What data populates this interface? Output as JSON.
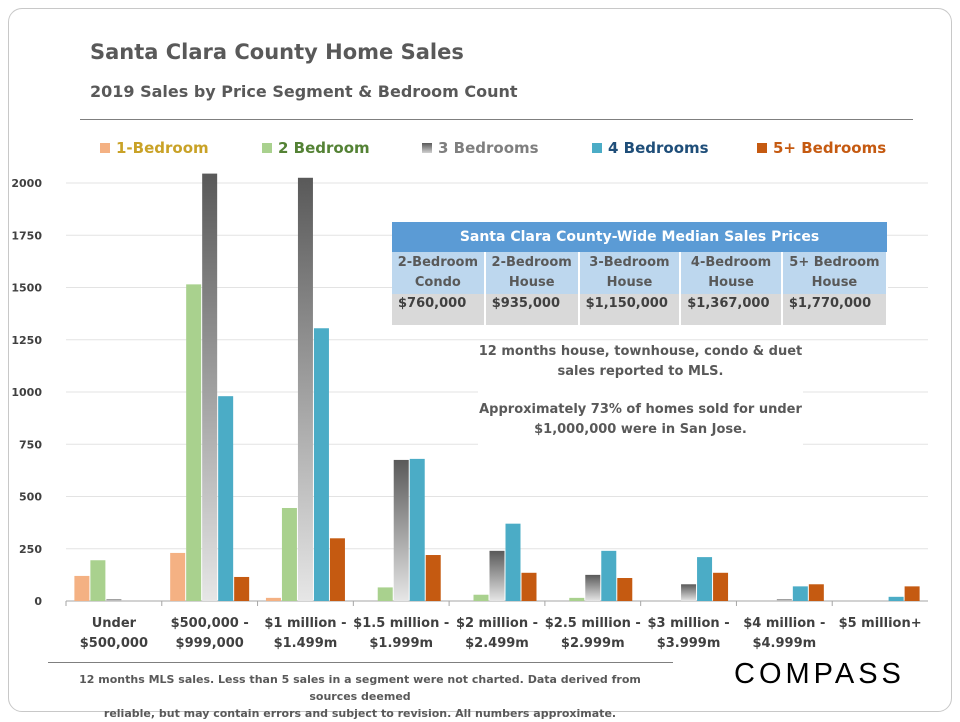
{
  "title": "Santa Clara County Home Sales",
  "subtitle": "2019 Sales by Price Segment & Bedroom Count",
  "chart_data": {
    "type": "bar",
    "categories": [
      [
        "Under",
        "$500,000"
      ],
      [
        "$500,000 -",
        "$999,000"
      ],
      [
        "$1 million -",
        "$1.499m"
      ],
      [
        "$1.5 million -",
        "$1.999m"
      ],
      [
        "$2 million -",
        "$2.499m"
      ],
      [
        "$2.5 million -",
        "$2.999m"
      ],
      [
        "$3 million -",
        "$3.999m"
      ],
      [
        "$4 million -",
        "$4.999m"
      ],
      [
        "$5 million+"
      ]
    ],
    "series": [
      {
        "name": "1-Bedroom",
        "color": "#f4b183",
        "text_color": "#c9a227",
        "values": [
          120,
          230,
          15,
          null,
          null,
          null,
          null,
          null,
          null
        ]
      },
      {
        "name": "2 Bedroom",
        "color": "#a9d18e",
        "text_color": "#548235",
        "values": [
          195,
          1515,
          445,
          65,
          30,
          15,
          null,
          null,
          null
        ]
      },
      {
        "name": "3 Bedrooms",
        "color": "#7f7f7f",
        "text_color": "#7f7f7f",
        "values": [
          8,
          2045,
          2025,
          675,
          240,
          125,
          80,
          8,
          null
        ]
      },
      {
        "name": "4 Bedrooms",
        "color": "#4bacc6",
        "text_color": "#1f4e79",
        "values": [
          null,
          980,
          1305,
          680,
          370,
          240,
          210,
          70,
          20
        ]
      },
      {
        "name": "5+ Bedrooms",
        "color": "#c55a11",
        "text_color": "#c55a11",
        "values": [
          null,
          115,
          300,
          220,
          135,
          110,
          135,
          80,
          70
        ]
      }
    ],
    "yticks": [
      0,
      250,
      500,
      750,
      1000,
      1250,
      1500,
      1750,
      2000
    ],
    "ylim": [
      0,
      2100
    ],
    "grid": true,
    "legend_position": "top",
    "xlabel": "",
    "ylabel": ""
  },
  "median_table": {
    "title": "Santa Clara County-Wide Median Sales Prices",
    "columns": [
      {
        "line1": "2-Bedroom",
        "line2": "Condo",
        "value": "$760,000"
      },
      {
        "line1": "2-Bedroom",
        "line2": "House",
        "value": "$935,000"
      },
      {
        "line1": "3-Bedroom",
        "line2": "House",
        "value": "$1,150,000"
      },
      {
        "line1": "4-Bedroom",
        "line2": "House",
        "value": "$1,367,000"
      },
      {
        "line1": "5+ Bedroom",
        "line2": "House",
        "value": "$1,770,000"
      }
    ]
  },
  "note": {
    "line1": "12 months house, townhouse, condo & duet sales reported to MLS.",
    "line2": "Approximately 73% of homes sold for under $1,000,000 were in San Jose."
  },
  "footer": {
    "line1": "12 months MLS sales. Less than 5 sales in a segment were not charted. Data derived from sources deemed",
    "line2": "reliable, but may contain errors and subject to revision. All numbers approximate."
  },
  "logo": "COMPASS"
}
